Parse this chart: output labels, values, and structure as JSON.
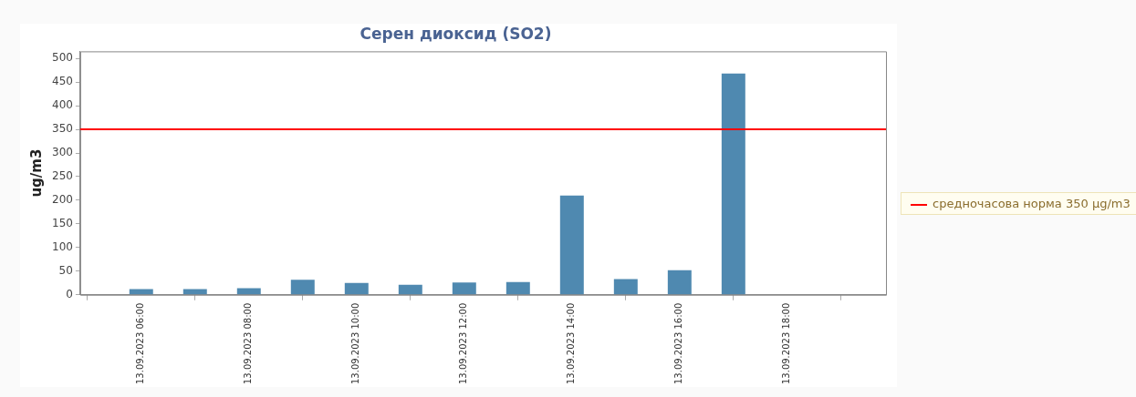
{
  "chart_data": {
    "type": "bar",
    "title": "Серен диоксид (SO2)",
    "ylabel": "ug/m3",
    "x": [
      "2023-09-13T06:00",
      "2023-09-13T07:00",
      "2023-09-13T08:00",
      "2023-09-13T09:00",
      "2023-09-13T10:00",
      "2023-09-13T11:00",
      "2023-09-13T12:00",
      "2023-09-13T13:00",
      "2023-09-13T14:00",
      "2023-09-13T15:00",
      "2023-09-13T16:00",
      "2023-09-13T17:00"
    ],
    "values": [
      12,
      12,
      14,
      32,
      25,
      21,
      26,
      27,
      210,
      33,
      52,
      468
    ],
    "color": "#4f89b0",
    "xlim": [
      "2023-09-13T04:52",
      "2023-09-13T19:50"
    ],
    "xticks": [
      {
        "value": "2023-09-13T06:00",
        "label": "13.09.2023 06:00"
      },
      {
        "value": "2023-09-13T08:00",
        "label": "13.09.2023 08:00"
      },
      {
        "value": "2023-09-13T10:00",
        "label": "13.09.2023 10:00"
      },
      {
        "value": "2023-09-13T12:00",
        "label": "13.09.2023 12:00"
      },
      {
        "value": "2023-09-13T14:00",
        "label": "13.09.2023 14:00"
      },
      {
        "value": "2023-09-13T16:00",
        "label": "13.09.2023 16:00"
      },
      {
        "value": "2023-09-13T18:00",
        "label": "13.09.2023 18:00"
      }
    ],
    "ylim": [
      0,
      515
    ],
    "yticks": [
      0,
      50,
      100,
      150,
      200,
      250,
      300,
      350,
      400,
      450,
      500
    ],
    "grid": false,
    "ref_lines": [
      {
        "axis": "y",
        "value": 350,
        "label": "средночасова норма 350 µg/m3",
        "color": "#ff0000"
      }
    ]
  }
}
